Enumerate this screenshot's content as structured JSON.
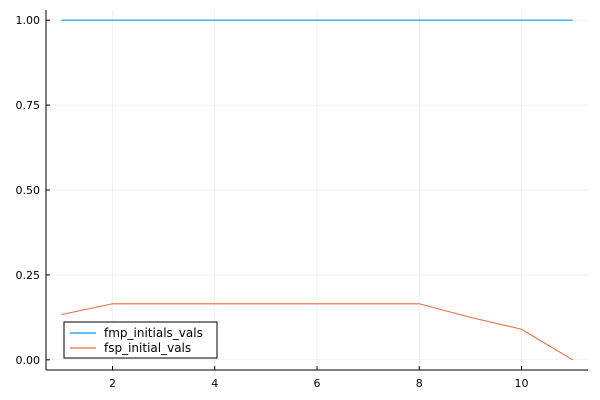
{
  "chart_data": {
    "type": "line",
    "title": "",
    "xlabel": "",
    "ylabel": "",
    "xlim": [
      0.7,
      11.3
    ],
    "ylim": [
      -0.03,
      1.03
    ],
    "xticks": [
      2,
      4,
      6,
      8,
      10
    ],
    "xtick_labels": [
      "2",
      "4",
      "6",
      "8",
      "10"
    ],
    "yticks": [
      0.0,
      0.25,
      0.5,
      0.75,
      1.0
    ],
    "ytick_labels": [
      "0.00",
      "0.25",
      "0.50",
      "0.75",
      "1.00"
    ],
    "grid": true,
    "legend_position": "bottom-left",
    "x": [
      1,
      2,
      3,
      4,
      5,
      6,
      7,
      8,
      9,
      10,
      11
    ],
    "series": [
      {
        "name": "fmp_initials_vals",
        "color": "#009AFA",
        "values": [
          1,
          1,
          1,
          1,
          1,
          1,
          1,
          1,
          1,
          1,
          1
        ]
      },
      {
        "name": "fsp_initial_vals",
        "color": "#E36F47",
        "values": [
          0.133,
          0.165,
          0.165,
          0.165,
          0.165,
          0.165,
          0.165,
          0.165,
          0.125,
          0.09,
          0.0
        ]
      }
    ]
  }
}
